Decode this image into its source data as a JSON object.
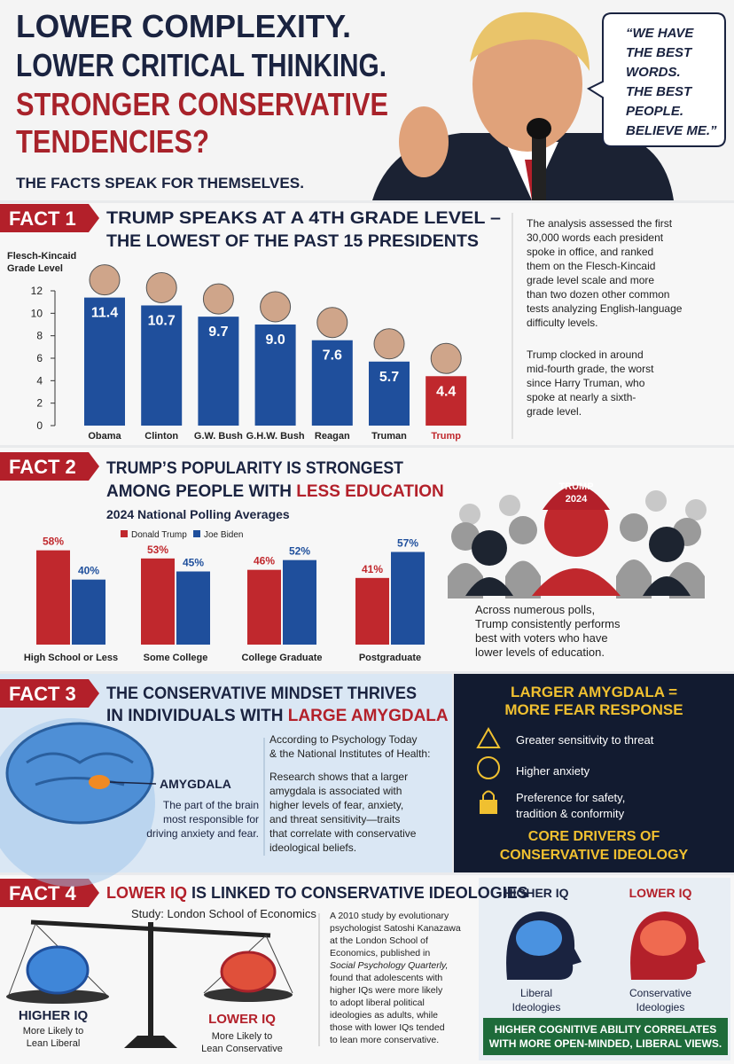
{
  "header": {
    "title_lines": [
      "LOWER COMPLEXITY.",
      "LOWER CRITICAL THINKING."
    ],
    "title_red_lines": [
      "STRONGER CONSERVATIVE",
      "TENDENCIES?"
    ],
    "subtitle": "THE FACTS SPEAK FOR THEMSELVES.",
    "quote_lines": [
      "“WE HAVE",
      "THE BEST",
      "WORDS.",
      "THE BEST",
      "PEOPLE.",
      "BELIEVE ME.”"
    ]
  },
  "chart_data": [
    {
      "type": "bar",
      "tag": "FACT 1",
      "title_lines": [
        "TRUMP SPEAKS AT A 4TH GRADE LEVEL –",
        "THE LOWEST OF THE PAST 15 PRESIDENTS"
      ],
      "y_label_lines": [
        "Flesch-Kincaid",
        "Grade Level"
      ],
      "categories": [
        "Obama",
        "Clinton",
        "G.W. Bush",
        "G.H.W. Bush",
        "Reagan",
        "Truman",
        "Trump"
      ],
      "values": [
        11.4,
        10.7,
        9.7,
        9.0,
        7.6,
        5.7,
        4.4
      ],
      "value_labels": [
        "11.4",
        "10.7",
        "9.7",
        "9.0",
        "7.6",
        "5.7",
        "4.4"
      ],
      "colors": [
        "#1f4f9c",
        "#1f4f9c",
        "#1f4f9c",
        "#1f4f9c",
        "#1f4f9c",
        "#1f4f9c",
        "#c0282d"
      ],
      "ylim": [
        0,
        12
      ],
      "yticks": [
        0,
        2,
        4,
        6,
        8,
        10,
        12
      ],
      "notes": [
        [
          "The analysis assessed the first",
          "30,000 words each president",
          "spoke in office, and ranked",
          "them on the Flesch-Kincaid",
          "grade level scale and more",
          "than two dozen other common",
          "tests analyzing English-language",
          "difficulty levels."
        ],
        [
          "Trump clocked in around",
          "mid-fourth grade, the worst",
          "since Harry Truman, who",
          "spoke at nearly a sixth-",
          "grade level."
        ]
      ]
    },
    {
      "type": "grouped_bar",
      "tag": "FACT 2",
      "title_lines": [
        "TRUMP’S POPULARITY IS STRONGEST",
        "AMONG PEOPLE WITH "
      ],
      "title_emphasis": "LESS EDUCATION",
      "subtitle": "2024 National Polling Averages",
      "categories": [
        "High School or Less",
        "Some College",
        "College Graduate",
        "Postgraduate"
      ],
      "series": [
        {
          "name": "Donald Trump",
          "color": "#c0282d",
          "values": [
            58,
            53,
            46,
            41
          ],
          "value_labels": [
            "58%",
            "53%",
            "46%",
            "41%"
          ]
        },
        {
          "name": "Joe Biden",
          "color": "#1f4f9c",
          "values": [
            40,
            45,
            52,
            57
          ],
          "value_labels": [
            "40%",
            "45%",
            "52%",
            "57%"
          ]
        }
      ],
      "ylim": [
        0,
        60
      ],
      "cap_lines": [
        "TRUMP",
        "2024"
      ],
      "caption_lines": [
        "Across numerous polls,",
        "Trump consistently performs",
        "best with voters who have",
        "lower levels of education."
      ]
    }
  ],
  "fact3": {
    "tag": "FACT 3",
    "title_line1": "THE CONSERVATIVE MINDSET THRIVES",
    "title_line2": "IN INDIVIDUALS WITH ",
    "title_emphasis": "LARGE AMYGDALA",
    "brain_label": "AMYGDALA",
    "brain_caption_lines": [
      "The part of the brain",
      "most responsible for",
      "driving anxiety and fear."
    ],
    "source_lines": [
      "According to Psychology Today",
      "& the National Institutes of Health:"
    ],
    "body_lines": [
      "Research shows that a larger",
      "amygdala is associated with",
      "higher levels of fear, anxiety,",
      "and threat sensitivity—traits",
      "that correlate with conservative",
      "ideological beliefs."
    ],
    "panel_title_lines": [
      "LARGER AMYGDALA =",
      "MORE FEAR RESPONSE"
    ],
    "items": [
      [
        "Greater sensitivity to threat"
      ],
      [
        "Higher anxiety"
      ],
      [
        "Preference for safety,",
        "tradition & conformity"
      ]
    ],
    "panel_footer_lines": [
      "CORE DRIVERS OF",
      "CONSERVATIVE IDEOLOGY"
    ]
  },
  "fact4": {
    "tag": "FACT 4",
    "title_emphasis": "LOWER IQ",
    "title_rest": " IS LINKED TO CONSERVATIVE IDEOLOGIES",
    "study": "Study: London School of Economics",
    "left_heading": "HIGHER IQ",
    "left_lines": [
      "More Likely to",
      "Lean Liberal"
    ],
    "right_heading": "LOWER IQ",
    "right_lines": [
      "More Likely to",
      "Lean Conservative"
    ],
    "body_lines": [
      "A 2010 study by evolutionary",
      "psychologist Satoshi Kanazawa",
      "at the London School of",
      "Economics, published in",
      "Social Psychology Quarterly,",
      "found that adolescents with",
      "higher IQs were more likely",
      "to adopt liberal political",
      "ideologies as adults, while",
      "those with lower IQs tended",
      "to lean more conservative."
    ],
    "panel_high": "HIGHER IQ",
    "panel_low": "LOWER IQ",
    "panel_high_lines": [
      "Liberal",
      "Ideologies"
    ],
    "panel_low_lines": [
      "Conservative",
      "Ideologies"
    ],
    "footer_lines": [
      "HIGHER COGNITIVE ABILITY CORRELATES",
      "WITH MORE OPEN-MINDED, LIBERAL VIEWS."
    ]
  }
}
